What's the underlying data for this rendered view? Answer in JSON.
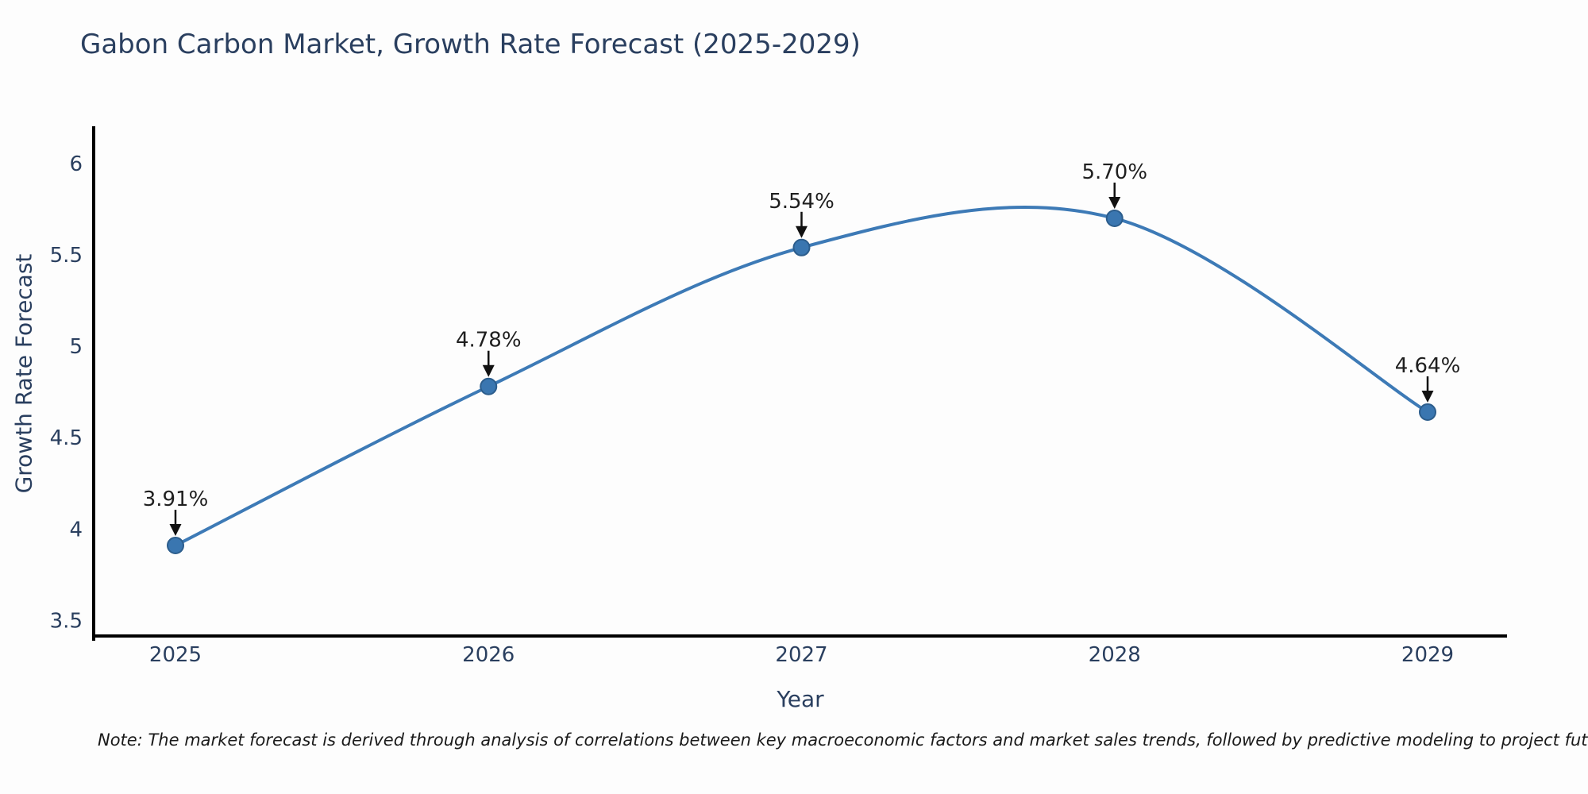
{
  "title": "Gabon Carbon Market, Growth Rate Forecast (2025-2029)",
  "note": "Note: The market forecast is derived through analysis of correlations between key macroeconomic factors and market sales trends, followed by predictive modeling to project future sales",
  "chart_data": {
    "type": "line",
    "title": "Gabon Carbon Market, Growth Rate Forecast (2025-2029)",
    "xlabel": "Year",
    "ylabel": "Growth Rate Forecast",
    "categories": [
      "2025",
      "2026",
      "2027",
      "2028",
      "2029"
    ],
    "values": [
      3.91,
      4.78,
      5.54,
      5.7,
      4.64
    ],
    "point_labels": [
      "3.91%",
      "4.78%",
      "5.54%",
      "5.70%",
      "4.64%"
    ],
    "ytick_labels": [
      "3.5",
      "4",
      "4.5",
      "5",
      "5.5",
      "6"
    ],
    "ytick_values": [
      3.5,
      4,
      4.5,
      5,
      5.5,
      6
    ],
    "ylim": [
      3.41,
      6.22
    ],
    "line_shape": "spline",
    "grid": false,
    "legend_position": "none",
    "colors": {
      "line": "#3d7ab6",
      "marker_fill": "#3a76b0",
      "marker_edge": "#2c5d8c",
      "axis_spine": "#000000",
      "tick_text": "#2a3f5f",
      "annotation_text": "#1f1f1f",
      "arrow": "#111111"
    }
  }
}
